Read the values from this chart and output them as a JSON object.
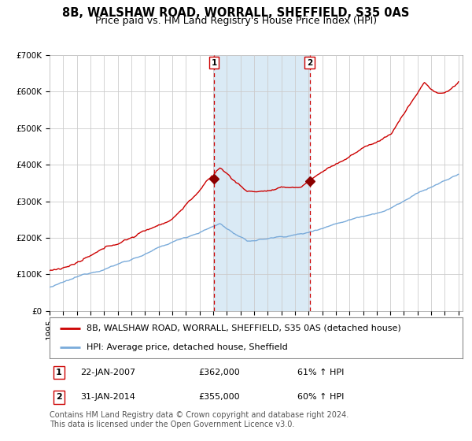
{
  "title": "8B, WALSHAW ROAD, WORRALL, SHEFFIELD, S35 0AS",
  "subtitle": "Price paid vs. HM Land Registry's House Price Index (HPI)",
  "ylim": [
    0,
    700000
  ],
  "yticks": [
    0,
    100000,
    200000,
    300000,
    400000,
    500000,
    600000,
    700000
  ],
  "ytick_labels": [
    "£0",
    "£100K",
    "£200K",
    "£300K",
    "£400K",
    "£500K",
    "£600K",
    "£700K"
  ],
  "x_start_year": 1995,
  "x_end_year": 2025,
  "red_line_color": "#cc0000",
  "blue_line_color": "#7aabda",
  "shading_color": "#daeaf5",
  "marker_color": "#8b0000",
  "vline_color": "#cc0000",
  "grid_color": "#cccccc",
  "background_color": "#ffffff",
  "purchase1_year": 2007.06,
  "purchase1_price": 362000,
  "purchase1_date": "22-JAN-2007",
  "purchase1_hpi": "61% ↑ HPI",
  "purchase2_year": 2014.08,
  "purchase2_price": 355000,
  "purchase2_date": "31-JAN-2014",
  "purchase2_hpi": "60% ↑ HPI",
  "legend_line1": "8B, WALSHAW ROAD, WORRALL, SHEFFIELD, S35 0AS (detached house)",
  "legend_line2": "HPI: Average price, detached house, Sheffield",
  "footer": "Contains HM Land Registry data © Crown copyright and database right 2024.\nThis data is licensed under the Open Government Licence v3.0.",
  "title_fontsize": 10.5,
  "subtitle_fontsize": 9,
  "tick_fontsize": 7.5,
  "legend_fontsize": 8,
  "footer_fontsize": 7
}
